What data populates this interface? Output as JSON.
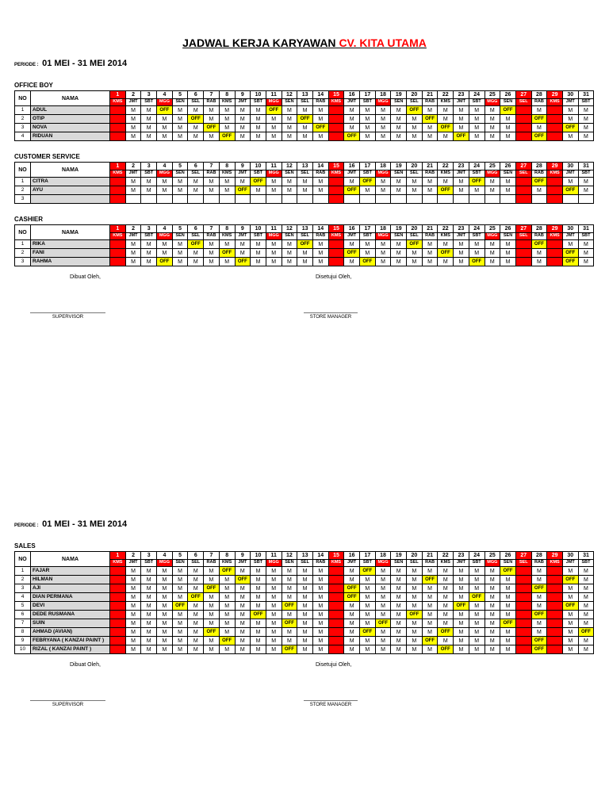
{
  "page": {
    "title_black": "JADWAL KERJA KARYAWAN",
    "title_red": "CV. KITA UTAMA",
    "periode_label": "PERIODE :",
    "periode_value": "01 MEI - 31 MEI 2014"
  },
  "columns": {
    "no": "NO",
    "nama": "NAMA"
  },
  "cell_values": {
    "work": "M",
    "off": "OFF"
  },
  "colors": {
    "holiday_red": "#FF0000",
    "off_yellow": "#FFFF00",
    "name_bg": "#D9D9D9",
    "title_accent": "#FF0000"
  },
  "calendar": {
    "day_numbers": [
      1,
      2,
      3,
      4,
      5,
      6,
      7,
      8,
      9,
      10,
      11,
      12,
      13,
      14,
      15,
      16,
      17,
      18,
      19,
      20,
      21,
      22,
      23,
      24,
      25,
      26,
      27,
      28,
      29,
      30,
      31
    ],
    "day_names": [
      "KMS",
      "JMT",
      "SBT",
      "MGG",
      "SEN",
      "SEL",
      "RAB",
      "KMS",
      "JMT",
      "SBT",
      "MGG",
      "SEN",
      "SEL",
      "RAB",
      "KMS",
      "JMT",
      "SBT",
      "MGG",
      "SEN",
      "SEL",
      "RAB",
      "KMS",
      "JMT",
      "SBT",
      "MGG",
      "SEN",
      "SEL",
      "RAB",
      "KMS",
      "JMT",
      "SBT"
    ],
    "holiday_columns": [
      1,
      15,
      27,
      29
    ],
    "sunday_columns": [
      4,
      11,
      18,
      25
    ]
  },
  "sections": [
    {
      "title": "OFFICE BOY",
      "rows": [
        {
          "no": "1",
          "name": "ADUL",
          "off": [
            4,
            11,
            20,
            26
          ]
        },
        {
          "no": "2",
          "name": "OTIP",
          "off": [
            6,
            13,
            21,
            28
          ]
        },
        {
          "no": "3",
          "name": "NOVA",
          "off": [
            7,
            14,
            22,
            30
          ]
        },
        {
          "no": "4",
          "name": "RIDUAN",
          "off": [
            8,
            16,
            23,
            28
          ]
        }
      ]
    },
    {
      "title": "CUSTOMER SERVICE",
      "rows": [
        {
          "no": "1",
          "name": "CITRA",
          "off": [
            10,
            17,
            24,
            28
          ]
        },
        {
          "no": "2",
          "name": "AYU",
          "off": [
            9,
            16,
            22,
            30
          ]
        },
        {
          "no": "3",
          "name": "",
          "off": [],
          "empty": true
        }
      ]
    },
    {
      "title": "CASHIER",
      "rows": [
        {
          "no": "1",
          "name": "RIKA",
          "off": [
            6,
            13,
            20,
            28
          ]
        },
        {
          "no": "2",
          "name": "FANI",
          "off": [
            8,
            16,
            22,
            30
          ]
        },
        {
          "no": "3",
          "name": "RAHMA",
          "off": [
            4,
            9,
            17,
            24,
            30
          ]
        }
      ]
    },
    {
      "title": "SALES",
      "rows": [
        {
          "no": "1",
          "name": "FAJAR",
          "off": [
            8,
            17,
            26
          ]
        },
        {
          "no": "2",
          "name": "HILMAN",
          "off": [
            9,
            21,
            30
          ]
        },
        {
          "no": "3",
          "name": "AJI",
          "off": [
            7,
            16,
            28
          ]
        },
        {
          "no": "4",
          "name": "DIAN PERMANA",
          "off": [
            6,
            16,
            24
          ]
        },
        {
          "no": "5",
          "name": "DEVI",
          "off": [
            5,
            12,
            23,
            30
          ]
        },
        {
          "no": "6",
          "name": "DEDE RUSMANA",
          "off": [
            10,
            20,
            28
          ]
        },
        {
          "no": "7",
          "name": "SUIN",
          "off": [
            12,
            18,
            26
          ]
        },
        {
          "no": "8",
          "name": "AHMAD (AVIAN)",
          "off": [
            7,
            17,
            22,
            31
          ]
        },
        {
          "no": "9",
          "name": "FEBRYANA ( KANZAI PAINT )",
          "off": [
            8,
            21,
            28
          ]
        },
        {
          "no": "10",
          "name": "RIZAL ( KANZAI PAINT )",
          "off": [
            12,
            22,
            28
          ]
        }
      ]
    }
  ],
  "signature": {
    "dibuat": "Dibuat Oleh,",
    "disetujui": "Disetujui Oleh,",
    "supervisor": "SUPERVISOR",
    "store_manager": "STORE MANAGER"
  }
}
